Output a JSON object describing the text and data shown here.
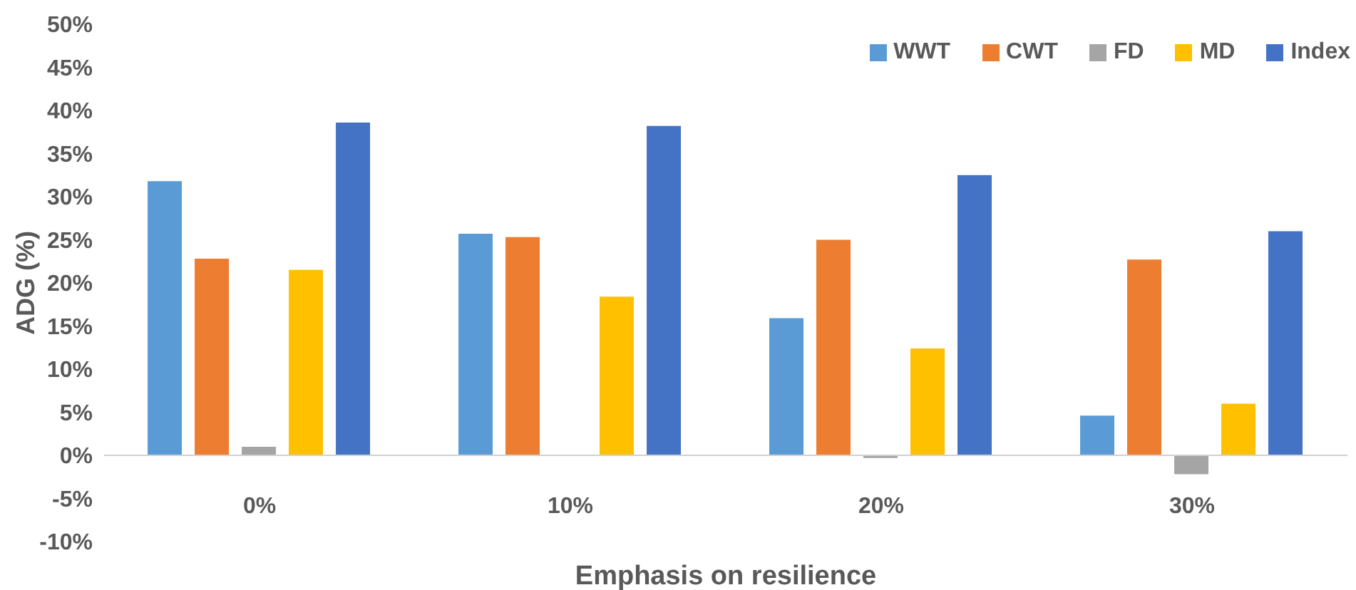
{
  "chart_data": {
    "type": "bar",
    "xlabel": "Emphasis on resilience",
    "ylabel": "ADG (%)",
    "categories": [
      "0%",
      "10%",
      "20%",
      "30%"
    ],
    "series": [
      {
        "name": "WWT",
        "color": "#5b9bd5",
        "values": [
          31.8,
          25.7,
          15.9,
          4.6
        ]
      },
      {
        "name": "CWT",
        "color": "#ed7d31",
        "values": [
          22.8,
          25.3,
          25.0,
          22.7
        ]
      },
      {
        "name": "FD",
        "color": "#a5a5a5",
        "values": [
          1.0,
          0,
          -0.3,
          -2.2
        ]
      },
      {
        "name": "MD",
        "color": "#ffc000",
        "values": [
          21.5,
          18.4,
          12.4,
          6.0
        ]
      },
      {
        "name": "Index",
        "color": "#4472c4",
        "values": [
          38.6,
          38.2,
          32.5,
          26.0
        ]
      }
    ],
    "ylim": [
      -10,
      50
    ],
    "yticks": [
      {
        "value": -10,
        "label": "-10%"
      },
      {
        "value": -5,
        "label": "-5%"
      },
      {
        "value": 0,
        "label": "0%"
      },
      {
        "value": 5,
        "label": "5%"
      },
      {
        "value": 10,
        "label": "10%"
      },
      {
        "value": 15,
        "label": "15%"
      },
      {
        "value": 20,
        "label": "20%"
      },
      {
        "value": 25,
        "label": "25%"
      },
      {
        "value": 30,
        "label": "30%"
      },
      {
        "value": 35,
        "label": "35%"
      },
      {
        "value": 40,
        "label": "40%"
      },
      {
        "value": 45,
        "label": "45%"
      },
      {
        "value": 50,
        "label": "50%"
      }
    ],
    "grid": false,
    "legend": "top right"
  }
}
